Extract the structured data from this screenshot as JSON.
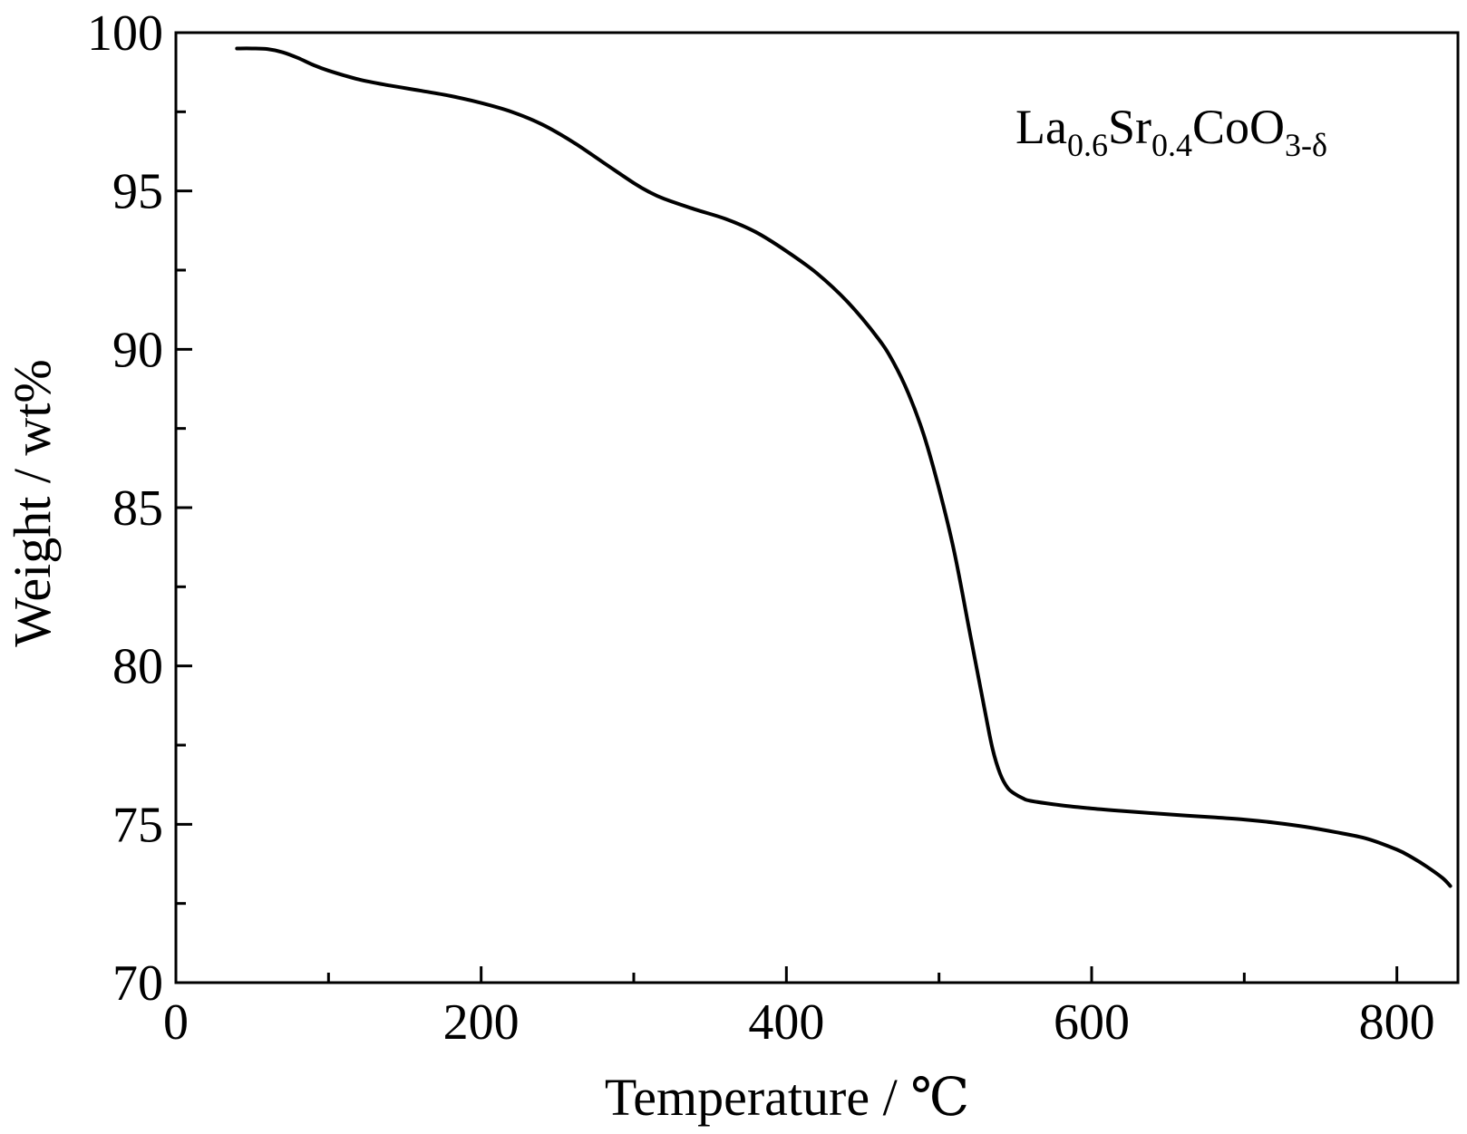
{
  "chart_data": {
    "type": "line",
    "title": "",
    "xlabel": "Temperature / ℃",
    "ylabel": "Weight / wt%",
    "xlim": [
      0,
      840
    ],
    "ylim": [
      70,
      100
    ],
    "x_ticks": [
      0,
      200,
      400,
      600,
      800
    ],
    "x_tick_labels": [
      "0",
      "200",
      "400",
      "600",
      "800"
    ],
    "x_minor_ticks": [
      100,
      300,
      500,
      700
    ],
    "y_ticks": [
      70,
      75,
      80,
      85,
      90,
      95,
      100
    ],
    "y_tick_labels": [
      "70",
      "75",
      "80",
      "85",
      "90",
      "95",
      "100"
    ],
    "y_minor_ticks": [
      72.5,
      77.5,
      82.5,
      87.5,
      92.5,
      97.5
    ],
    "grid": false,
    "line_color": "#000000",
    "annotation": {
      "parts": [
        {
          "text": "La",
          "sub": false
        },
        {
          "text": "0.6",
          "sub": true
        },
        {
          "text": "Sr",
          "sub": false
        },
        {
          "text": "0.4",
          "sub": true
        },
        {
          "text": "CoO",
          "sub": false
        },
        {
          "text": "3-δ",
          "sub": true
        }
      ],
      "position": "top-right"
    },
    "series": [
      {
        "x": [
          40,
          50,
          60,
          70,
          80,
          90,
          100,
          120,
          140,
          160,
          180,
          200,
          220,
          240,
          260,
          280,
          300,
          310,
          320,
          340,
          360,
          380,
          400,
          420,
          440,
          460,
          470,
          480,
          490,
          500,
          510,
          520,
          530,
          535,
          540,
          545,
          550,
          555,
          560,
          580,
          600,
          620,
          640,
          660,
          680,
          700,
          720,
          740,
          760,
          780,
          800,
          810,
          820,
          830,
          835
        ],
        "y": [
          99.5,
          99.5,
          99.48,
          99.38,
          99.2,
          98.98,
          98.8,
          98.52,
          98.33,
          98.17,
          98.0,
          97.78,
          97.5,
          97.1,
          96.55,
          95.9,
          95.25,
          94.97,
          94.75,
          94.42,
          94.12,
          93.7,
          93.1,
          92.4,
          91.5,
          90.35,
          89.6,
          88.6,
          87.3,
          85.6,
          83.6,
          81.1,
          78.6,
          77.4,
          76.6,
          76.15,
          75.95,
          75.82,
          75.74,
          75.6,
          75.5,
          75.42,
          75.35,
          75.28,
          75.22,
          75.15,
          75.05,
          74.92,
          74.75,
          74.55,
          74.2,
          73.95,
          73.65,
          73.3,
          73.05
        ]
      }
    ]
  }
}
